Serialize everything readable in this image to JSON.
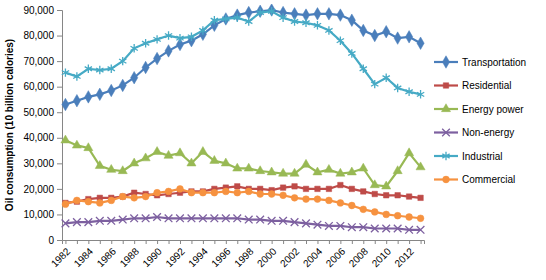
{
  "chart_data": {
    "type": "line",
    "y_label": "Oil consumption (10 billion calories)",
    "categories": [
      "1982",
      null,
      "1984",
      null,
      "1986",
      null,
      "1988",
      null,
      "1990",
      null,
      "1992",
      null,
      "1994",
      null,
      "1996",
      null,
      "1998",
      null,
      "2000",
      null,
      "2002",
      null,
      "2004",
      null,
      "2006",
      null,
      "2008",
      null,
      "2010",
      null,
      "2012",
      null
    ],
    "ylim": [
      0,
      90000
    ],
    "yticks": [
      0,
      {
        "value": 10000,
        "label": "10,000"
      },
      {
        "value": 20000,
        "label": "20,000"
      },
      {
        "value": 30000,
        "label": "30,000"
      },
      {
        "value": 40000,
        "label": "40,000"
      },
      {
        "value": 50000,
        "label": "50,000"
      },
      {
        "value": 60000,
        "label": "60,000"
      },
      {
        "value": 70000,
        "label": "70,000"
      },
      {
        "value": 80000,
        "label": "80,000"
      },
      {
        "value": 90000,
        "label": "90,000"
      }
    ],
    "grid": false,
    "legend": "right",
    "series": [
      {
        "name": "Transportation",
        "color": "#4a7ebb",
        "marker": "diamond",
        "values": [
          53000,
          54500,
          56000,
          57000,
          58500,
          60500,
          63500,
          67500,
          71000,
          74000,
          76500,
          78000,
          80500,
          84000,
          86500,
          88000,
          89000,
          89500,
          90000,
          89000,
          88500,
          88000,
          88500,
          88500,
          88000,
          86000,
          82000,
          80000,
          81500,
          79000,
          79500,
          77000
        ]
      },
      {
        "name": "Residential",
        "color": "#be4b48",
        "marker": "square",
        "values": [
          14500,
          15000,
          16000,
          16500,
          16500,
          17000,
          18500,
          18000,
          17500,
          18000,
          18500,
          19000,
          19000,
          20000,
          20500,
          21000,
          20000,
          20000,
          19500,
          20500,
          21000,
          20000,
          20000,
          20000,
          21500,
          20000,
          19000,
          18000,
          17500,
          17500,
          17000,
          16500
        ]
      },
      {
        "name": "Energy power",
        "color": "#98b954",
        "marker": "triangle",
        "values": [
          39000,
          37000,
          36000,
          29000,
          27500,
          27000,
          30000,
          32000,
          34500,
          33000,
          34000,
          30000,
          34500,
          31000,
          30000,
          28000,
          28000,
          27000,
          26500,
          26000,
          26000,
          29500,
          26500,
          27500,
          26000,
          26500,
          28000,
          21500,
          21000,
          27000,
          34000,
          28500
        ]
      },
      {
        "name": "Non-energy",
        "color": "#7d60a0",
        "marker": "x",
        "values": [
          6500,
          7000,
          7000,
          7500,
          7500,
          8000,
          8500,
          8500,
          9000,
          8500,
          8500,
          8500,
          8500,
          8500,
          8500,
          8500,
          8000,
          8000,
          7500,
          7500,
          7000,
          6500,
          6000,
          5500,
          5500,
          5000,
          5000,
          4500,
          4500,
          4500,
          4000,
          4000
        ]
      },
      {
        "name": "Industrial",
        "color": "#46aac5",
        "marker": "star",
        "values": [
          65500,
          64000,
          67000,
          66500,
          67000,
          70000,
          75000,
          77000,
          78500,
          80000,
          79000,
          79500,
          82000,
          86000,
          86500,
          87000,
          85500,
          89000,
          89500,
          87000,
          85500,
          85000,
          84000,
          82000,
          78000,
          73000,
          67000,
          61000,
          63500,
          59500,
          58000,
          57000
        ]
      },
      {
        "name": "Commercial",
        "color": "#f69240",
        "marker": "circle",
        "values": [
          14000,
          15500,
          15000,
          14500,
          15500,
          17000,
          16500,
          17000,
          18500,
          19000,
          20000,
          18500,
          18500,
          18500,
          19000,
          18500,
          19000,
          18000,
          18000,
          17500,
          16500,
          16000,
          16000,
          15500,
          14500,
          13500,
          12000,
          11000,
          10000,
          9500,
          9000,
          8500
        ]
      }
    ]
  }
}
